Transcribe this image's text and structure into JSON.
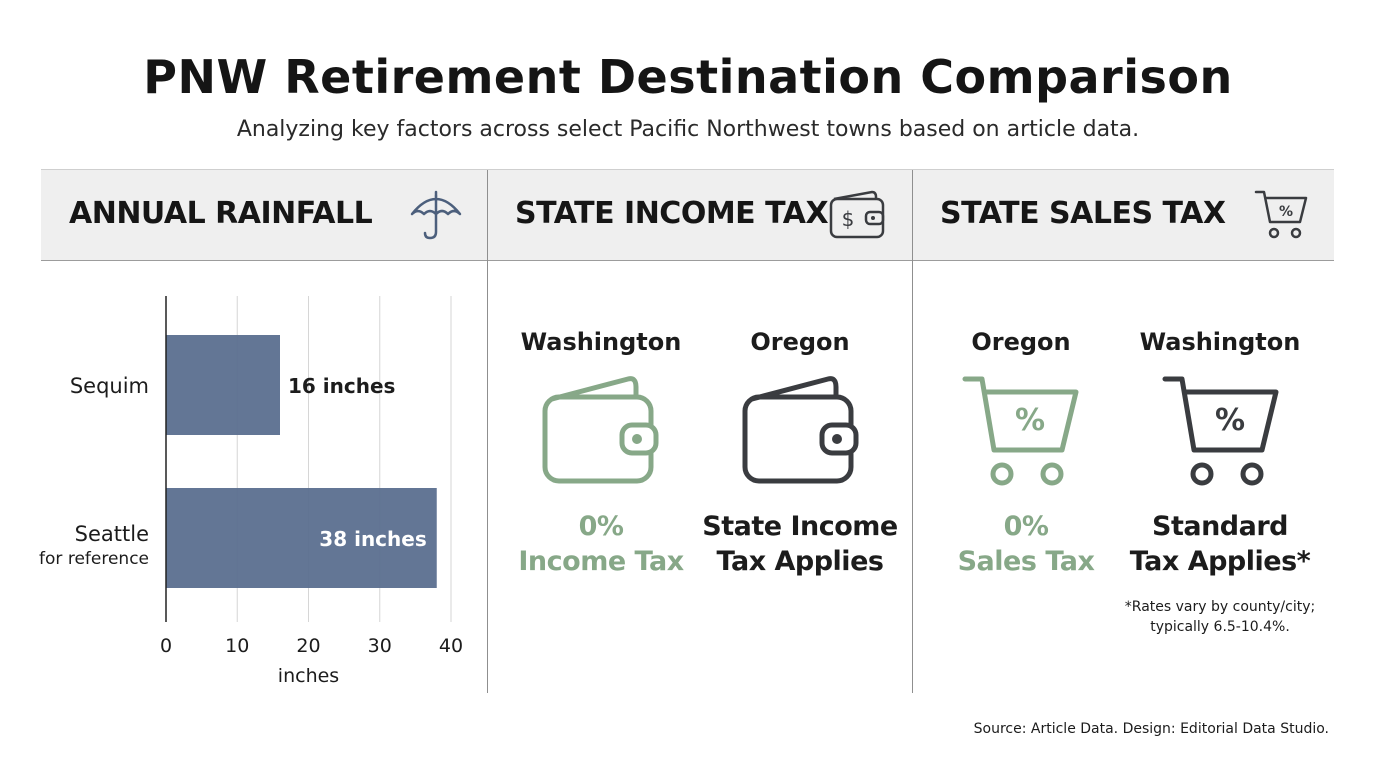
{
  "title": "PNW Retirement Destination Comparison",
  "subtitle": "Analyzing key factors across select Pacific Northwest towns based on article data.",
  "panels": {
    "rainfall": {
      "header": "ANNUAL RAINFALL",
      "icon": "umbrella-icon"
    },
    "income_tax": {
      "header": "STATE INCOME TAX",
      "icon": "wallet-dollar-icon",
      "items": [
        {
          "name": "Washington",
          "line1": "0%",
          "line2": "Income Tax",
          "color": "#87a888",
          "icon": "wallet-icon"
        },
        {
          "name": "Oregon",
          "line1": "State Income",
          "line2": "Tax Applies",
          "color": "#3a3c40",
          "icon": "wallet-icon"
        }
      ]
    },
    "sales_tax": {
      "header": "STATE SALES TAX",
      "icon": "cart-percent-icon",
      "items": [
        {
          "name": "Oregon",
          "line1": "0%",
          "line2": "Sales Tax",
          "color": "#87a888",
          "icon": "cart-percent-icon"
        },
        {
          "name": "Washington",
          "line1": "Standard",
          "line2": "Tax Applies*",
          "color": "#3a3c40",
          "icon": "cart-percent-icon"
        }
      ],
      "footnote_line1": "*Rates vary by county/city;",
      "footnote_line2": "typically 6.5-10.4%."
    }
  },
  "chart_data": {
    "type": "bar",
    "orientation": "horizontal",
    "categories": [
      "Sequim",
      "Seattle"
    ],
    "category_sublabels": [
      "",
      "for reference"
    ],
    "values": [
      16,
      38
    ],
    "data_labels": [
      "16 inches",
      "38 inches"
    ],
    "xlabel": "inches",
    "xticks": [
      0,
      10,
      20,
      30,
      40
    ],
    "xlim": [
      0,
      40
    ],
    "grid": true,
    "bar_color": "#5b6f8f"
  },
  "source": "Source: Article Data. Design: Editorial Data Studio."
}
